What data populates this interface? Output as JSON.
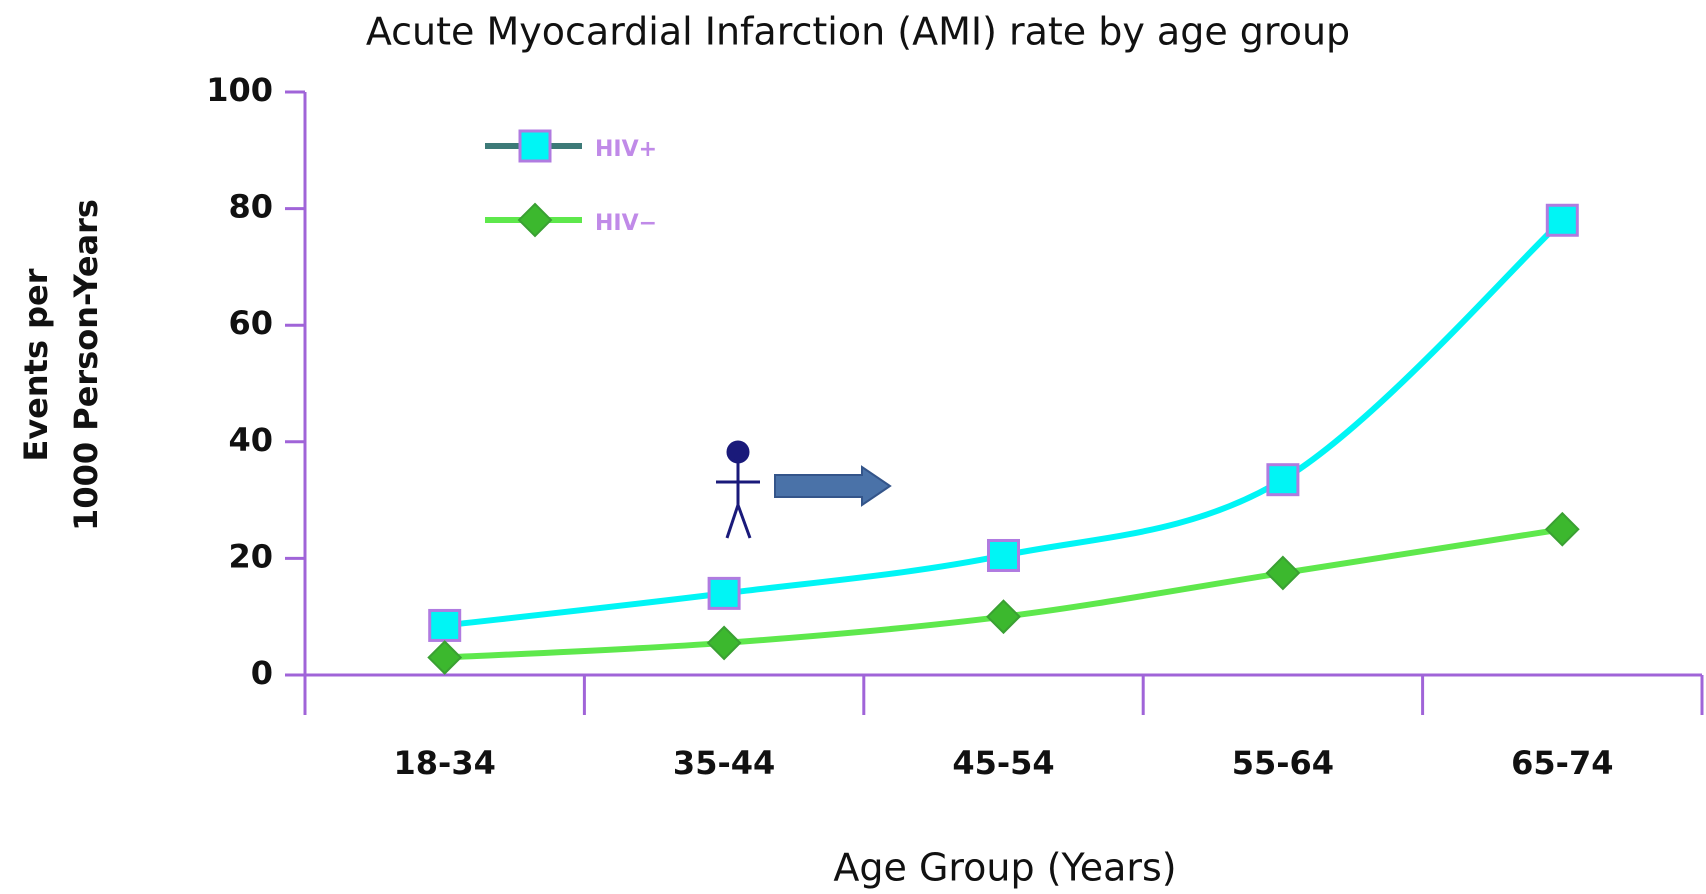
{
  "chart_data": {
    "type": "line",
    "title": "Acute Myocardial Infarction (AMI) rate by age group",
    "x_label": "Age Group (Years)",
    "y_label": [
      "Events per",
      "1000 Person-Years"
    ],
    "categories": [
      "18-34",
      "35-44",
      "45-54",
      "55-64",
      "65-74"
    ],
    "series": [
      {
        "name": "HIV+",
        "color": "#00f5f5",
        "marker": "square",
        "marker_edge": "#b07be0",
        "legend_line_color": "#3d7a78",
        "values": [
          8.5,
          14,
          20.5,
          33.5,
          78
        ]
      },
      {
        "name": "HIV−",
        "color": "#5ee84c",
        "marker": "diamond",
        "marker_edge": "#3aa033",
        "marker_fill": "#3cb82e",
        "legend_line_color": "#5ee84c",
        "values": [
          3,
          5.5,
          10,
          17.5,
          25
        ]
      }
    ],
    "ylim": [
      0,
      100
    ],
    "yticks": [
      0,
      20,
      40,
      60,
      80,
      100
    ],
    "axis_color": "#a064d8",
    "legend_text_color": "#c08ae8",
    "legend": "upper left",
    "smooth": true
  }
}
